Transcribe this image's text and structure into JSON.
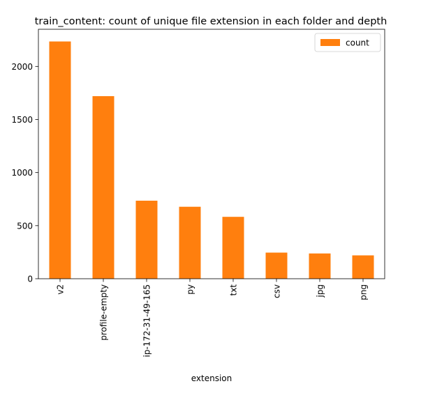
{
  "chart_data": {
    "type": "bar",
    "title": "train_content: count of unique file extension in each folder and depth",
    "xlabel": "extension",
    "ylabel": "",
    "categories": [
      "v2",
      "profile-empty",
      "ip-172-31-49-165",
      "py",
      "txt",
      "csv",
      "jpg",
      "png"
    ],
    "series": [
      {
        "name": "count",
        "color": "#ff7f0e",
        "values": [
          2235,
          1720,
          735,
          678,
          583,
          246,
          238,
          220
        ]
      }
    ],
    "ylim": [
      0,
      2350
    ],
    "yticks": [
      0,
      500,
      1000,
      1500,
      2000
    ],
    "grid": false,
    "legend_position": "top-right"
  }
}
